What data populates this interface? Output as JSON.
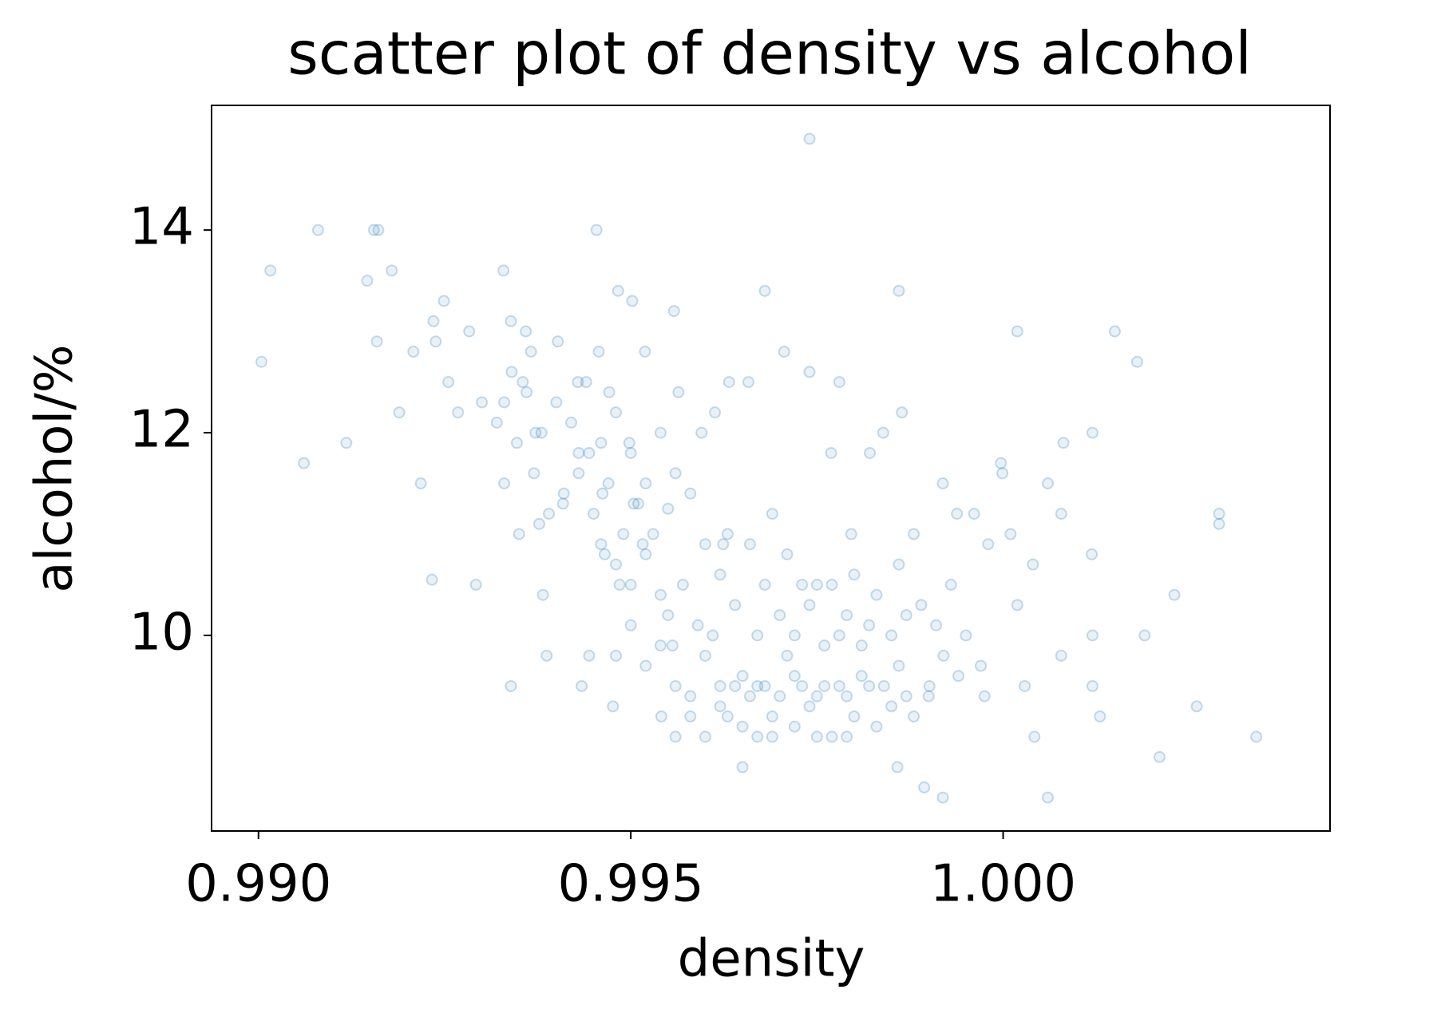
{
  "chart_data": {
    "type": "scatter",
    "title": "scatter plot of density vs alcohol",
    "x_label": "density",
    "y_label": "alcohol/%",
    "color": "#1f77b4",
    "x": [
      0.99004,
      0.99016,
      0.99061,
      0.9908,
      0.99118,
      0.99146,
      0.99155,
      0.99161,
      0.99159,
      0.99179,
      0.99189,
      0.99208,
      0.99218,
      0.99233,
      0.99235,
      0.99238,
      0.99249,
      0.99255,
      0.99268,
      0.99283,
      0.99292,
      0.99329,
      0.99339,
      0.99339,
      0.99359,
      0.99366,
      0.99355,
      0.9933,
      0.99347,
      0.9933,
      0.99372,
      0.99377,
      0.99382,
      0.99387,
      0.99402,
      0.99409,
      0.99429,
      0.99434,
      0.99444,
      0.99454,
      0.99457,
      0.9943,
      0.99444,
      0.99462,
      0.99465,
      0.99471,
      0.99476,
      0.99483,
      0.99502,
      0.99498,
      0.99485,
      0.99519,
      0.99504,
      0.99516,
      0.99558,
      0.99564,
      0.99541,
      0.99556,
      0.9955,
      0.99595,
      0.99613,
      0.99632,
      0.99624,
      0.9965,
      0.99658,
      0.9968,
      0.99706,
      0.9974,
      0.9974,
      0.9978,
      0.99769,
      0.99796,
      0.99821,
      0.99839,
      0.9986,
      0.99858,
      0.99864,
      0.99894,
      0.99919,
      0.99901,
      0.99919,
      0.99938,
      0.99961,
      0.99975,
      0.99997,
      0.99999,
      1.0001,
      1.00019,
      1.00019,
      1.00029,
      1.0004,
      1.00042,
      1.0006,
      1.0006,
      1.00078,
      1.00081,
      1.00078,
      1.0012,
      1.00119,
      1.0012,
      1.0013,
      1.0015,
      1.0018,
      1.0019,
      1.0021,
      1.0023,
      1.0026,
      1.0029,
      1.0029,
      1.0034,
      1.0012,
      0.9956,
      0.9958,
      0.996,
      0.9961,
      0.9962,
      0.9963,
      0.9964,
      0.9965,
      0.9966,
      0.9967,
      0.9968,
      0.9969,
      0.997,
      0.9971,
      0.9972,
      0.9973,
      0.9974,
      0.9975,
      0.9976,
      0.9977,
      0.9978,
      0.9979,
      0.998,
      0.9981,
      0.9982,
      0.9983,
      0.9984,
      0.9985,
      0.9986,
      0.9987,
      0.9988,
      0.999,
      0.9992,
      0.9994,
      0.9955,
      0.9957,
      0.9959,
      0.996,
      0.9962,
      0.9963,
      0.9964,
      0.9966,
      0.9967,
      0.9968,
      0.9969,
      0.997,
      0.9971,
      0.9972,
      0.9973,
      0.9974,
      0.9975,
      0.9976,
      0.9977,
      0.9978,
      0.9979,
      0.998,
      0.9981,
      0.9982,
      0.9983,
      0.9985,
      0.9986,
      0.9987,
      0.9988,
      0.9989,
      0.9991,
      0.9993,
      0.9995,
      0.9997,
      0.9998,
      0.9945,
      0.9946,
      0.9947,
      0.9948,
      0.9949,
      0.995,
      0.9951,
      0.9952,
      0.9953,
      0.9954,
      0.9941,
      0.9943,
      0.9939,
      0.9937,
      0.9935,
      0.9944,
      0.9946,
      0.9948,
      0.995,
      0.9952,
      0.9954,
      0.9956,
      0.9958,
      0.9936,
      0.9938,
      0.994,
      0.9942,
      0.9934,
      0.9932,
      0.993,
      0.9948,
      0.995,
      0.9952,
      0.9954,
      0.9956,
      0.9958,
      0.996,
      0.9962,
      0.9965,
      0.9967,
      0.9969,
      0.9972,
      0.9975,
      0.9979
    ],
    "y": [
      12.7,
      13.6,
      11.7,
      14,
      11.9,
      13.5,
      14,
      14,
      12.9,
      13.6,
      12.2,
      12.8,
      11.5,
      10.55,
      13.1,
      12.9,
      13.3,
      12.5,
      12.2,
      13,
      10.5,
      13.6,
      13.1,
      9.5,
      13,
      12.8,
      12.5,
      12.3,
      11.9,
      11.5,
      12,
      11.1,
      10.4,
      9.8,
      12.9,
      11.3,
      12.5,
      9.5,
      11.8,
      14,
      12.8,
      11.6,
      9.8,
      11.4,
      10.8,
      12.4,
      9.3,
      13.4,
      13.3,
      11.9,
      10.5,
      12.8,
      11.3,
      10.9,
      13.2,
      12.4,
      9.2,
      9.9,
      11.25,
      12,
      12.2,
      12.5,
      10.9,
      8.7,
      12.5,
      13.4,
      12.8,
      12.6,
      14.9,
      12.5,
      11.8,
      11,
      11.8,
      12,
      13.4,
      8.7,
      12.2,
      8.5,
      8.4,
      9.5,
      11.5,
      11.2,
      11.2,
      9.4,
      11.7,
      11.6,
      11,
      13,
      10.3,
      9.5,
      10.7,
      9,
      8.4,
      11.5,
      11.2,
      11.9,
      9.8,
      12,
      10.8,
      10,
      9.2,
      13,
      12.7,
      10,
      8.8,
      10.4,
      9.3,
      11.2,
      11.1,
      9,
      9.5,
      9.5,
      9.4,
      9.8,
      10,
      9.5,
      9.2,
      9.5,
      9.6,
      9.4,
      9.5,
      9.5,
      9.2,
      9.4,
      9.8,
      9.6,
      9.5,
      9.3,
      9.4,
      9.5,
      9,
      9.5,
      9.4,
      9.2,
      9.6,
      9.5,
      9.1,
      9.5,
      9.3,
      9.7,
      9.4,
      9.2,
      9.4,
      9.8,
      9.6,
      10.2,
      10.5,
      10.1,
      10.9,
      10.6,
      11,
      10.3,
      10.9,
      10,
      10.5,
      11.2,
      10.2,
      10.8,
      10,
      10.5,
      10.3,
      10.5,
      9.9,
      10.5,
      10,
      10.2,
      10.6,
      9.9,
      10.1,
      10.4,
      10,
      10.7,
      10.2,
      11,
      10.3,
      10.1,
      10.5,
      10,
      9.7,
      10.9,
      11.2,
      10.9,
      11.5,
      10.7,
      11,
      10.5,
      11.3,
      10.8,
      11,
      10.4,
      11.4,
      11.8,
      11.2,
      11.6,
      11,
      12.5,
      11.9,
      12.2,
      11.8,
      11.5,
      12,
      11.6,
      11.4,
      12.4,
      12,
      12.3,
      12.1,
      12.6,
      12.1,
      12.3,
      9.8,
      10.1,
      9.7,
      9.9,
      9,
      9.2,
      9,
      9.3,
      9.1,
      9,
      9,
      9.1,
      9,
      9
    ],
    "xlim": [
      0.98937,
      1.00439
    ],
    "ylim": [
      8.07,
      15.23
    ],
    "xticks": [
      {
        "value": 0.99,
        "label": "0.990"
      },
      {
        "value": 0.995,
        "label": "0.995"
      },
      {
        "value": 1.0,
        "label": "1.000"
      }
    ],
    "yticks": [
      10,
      12,
      14
    ]
  }
}
